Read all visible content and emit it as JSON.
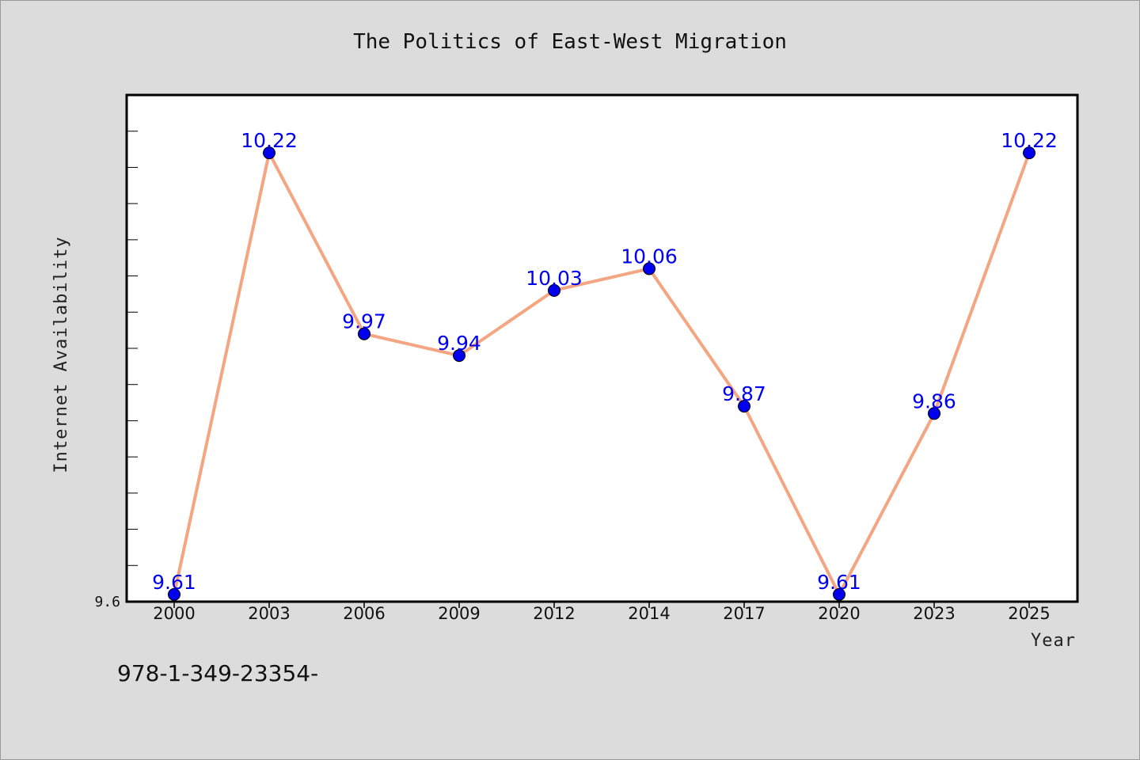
{
  "chart_data": {
    "type": "line",
    "title": "The Politics of East-West Migration",
    "xlabel": "Year",
    "ylabel": "Internet Availability",
    "categories": [
      "2000",
      "2003",
      "2006",
      "2009",
      "2012",
      "2014",
      "2017",
      "2020",
      "2023",
      "2025"
    ],
    "series": [
      {
        "values": [
          9.61,
          10.22,
          9.97,
          9.94,
          10.03,
          10.06,
          9.87,
          9.61,
          9.86,
          10.22
        ],
        "labels": [
          "9.61",
          "10.22",
          "9.97",
          "9.94",
          "10.03",
          "10.06",
          "9.87",
          "9.61",
          "9.86",
          "10.22"
        ]
      }
    ],
    "ylim": [
      9.6,
      10.3
    ],
    "ytick_labels": [
      {
        "value": 9.6,
        "label": "9.6"
      }
    ],
    "grid": false,
    "colors": {
      "line": "#f4a582",
      "marker": "#0000ee",
      "point_label": "#0000ee",
      "plot_background": "#ffffff",
      "figure_background": "#dcdcdc"
    }
  },
  "footer": {
    "text": "978-1-349-23354-"
  }
}
